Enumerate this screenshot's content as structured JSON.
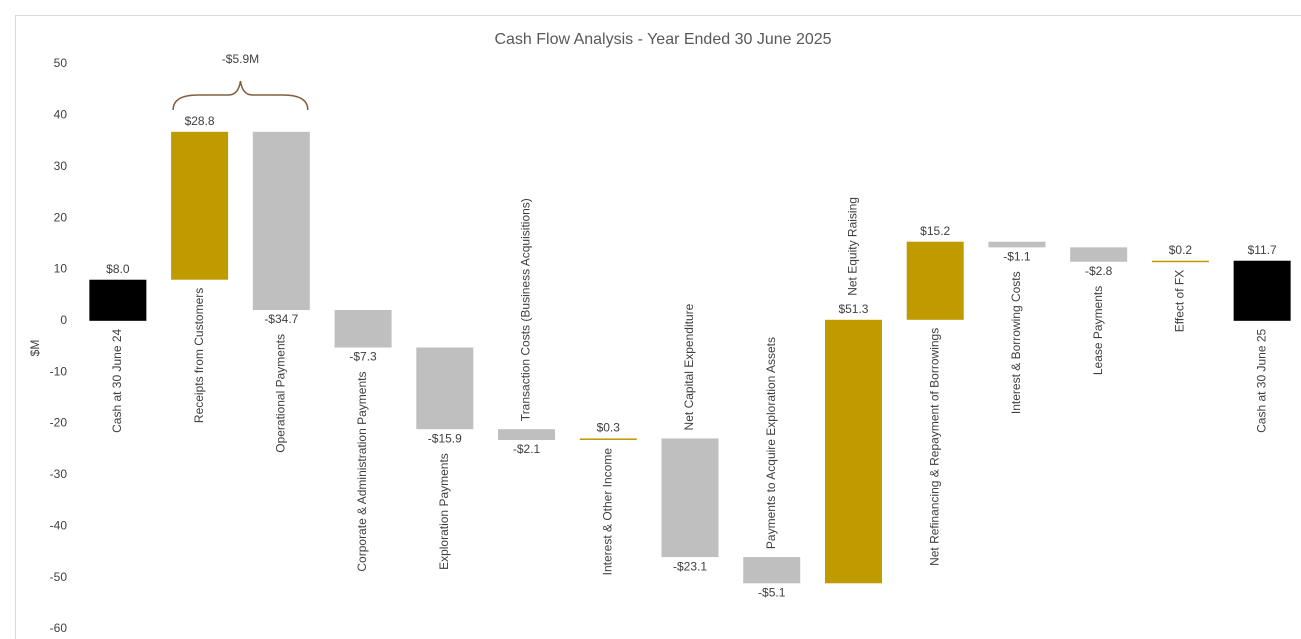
{
  "chart_data": {
    "type": "waterfall",
    "title": "Cash Flow Analysis - Year Ended 30 June 2025",
    "y_label": "$M",
    "categories": [
      "Cash at 30 June 24",
      "Receipts from Customers",
      "Operational Payments",
      "Corporate & Administration Payments",
      "Exploration Payments",
      "Transaction Costs (Business Acquisitions)",
      "Interest & Other Income",
      "Net Capital Expenditure",
      "Payments to Acquire Exploration Assets",
      "Net Equity Raising",
      "Net Refinancing & Repayment of Borrowings",
      "Interest & Borrowing Costs",
      "Lease Payments",
      "Effect of FX",
      "Cash at 30 June 25"
    ],
    "values": [
      8.0,
      28.8,
      -34.7,
      -7.3,
      -15.9,
      -2.1,
      0.3,
      -23.1,
      -5.1,
      51.3,
      15.2,
      -1.1,
      -2.8,
      0.2,
      11.7
    ],
    "value_labels": [
      "$8.0",
      "$28.8",
      "-$34.7",
      "-$7.3",
      "-$15.9",
      "-$2.1",
      "$0.3",
      "-$23.1",
      "-$5.1",
      "$51.3",
      "$15.2",
      "-$1.1",
      "-$2.8",
      "$0.2",
      "$11.7"
    ],
    "measure": [
      "absolute",
      "relative",
      "relative",
      "relative",
      "relative",
      "relative",
      "relative",
      "relative",
      "relative",
      "relative",
      "relative",
      "relative",
      "relative",
      "relative",
      "absolute"
    ],
    "colors": {
      "absolute": "#000000",
      "increase": "#bf9b00",
      "decrease": "#bfbfbf"
    },
    "annotations": [
      {
        "text": "-$5.9M"
      }
    ],
    "ylim": [
      -60,
      50
    ],
    "yticks": [
      -60,
      -50,
      -40,
      -30,
      -20,
      -10,
      0,
      10,
      20,
      30,
      40,
      50
    ],
    "grid": false
  }
}
